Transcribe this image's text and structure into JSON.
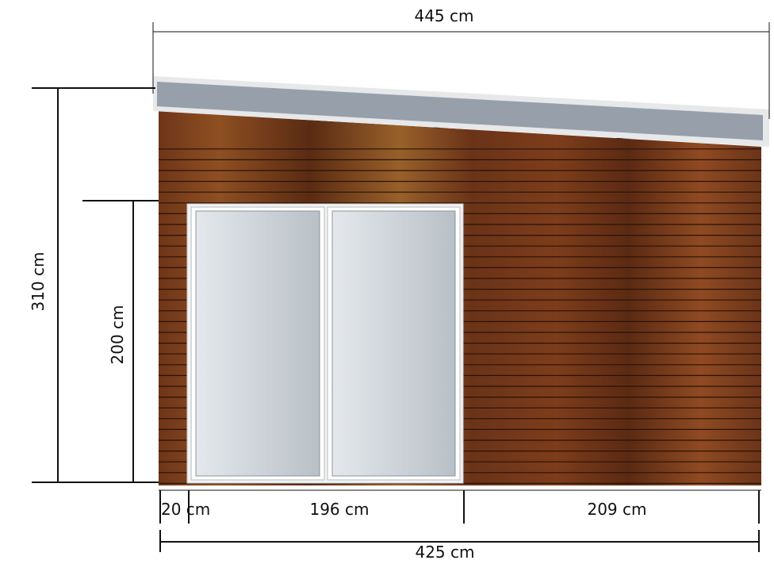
{
  "dimensions": {
    "roof_width": "445 cm",
    "total_height": "310 cm",
    "door_height": "200 cm",
    "left_offset": "20 cm",
    "door_width": "196 cm",
    "right_wall": "209 cm",
    "wall_width": "425 cm"
  },
  "colors": {
    "wood_dark": "#5a2c14",
    "wood_mid": "#7a3e1c",
    "wood_light": "#9b5a25",
    "plank_line": "#2a1206",
    "roof_fill": "#97a0aa",
    "roof_edge": "#e6e8ea",
    "glass_light": "#dfe4e8",
    "glass_dark": "#b9c1c8",
    "frame": "#f2f3f4",
    "dim_line": "#111111"
  }
}
